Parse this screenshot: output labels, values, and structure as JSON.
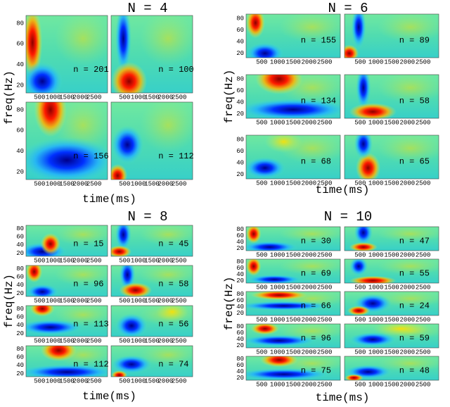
{
  "figure": {
    "y_label": "freq(Hz)",
    "x_label": "time(ms)",
    "x_ticks": [
      "500",
      "1000",
      "1500",
      "2000",
      "2500"
    ],
    "y_ticks": [
      "80",
      "60",
      "40",
      "20"
    ],
    "panels": [
      {
        "title": "N = 4",
        "counts": [
          "n = 201",
          "n = 100",
          "n = 156",
          "n = 112"
        ]
      },
      {
        "title": "N = 6",
        "counts": [
          "n = 155",
          "n = 89",
          "n = 134",
          "n = 58",
          "n = 68",
          "n = 65"
        ]
      },
      {
        "title": "N = 8",
        "counts": [
          "n = 15",
          "n = 45",
          "n = 96",
          "n = 58",
          "n = 113",
          "n = 56",
          "n = 112",
          "n = 74"
        ]
      },
      {
        "title": "N = 10",
        "counts": [
          "n = 30",
          "n = 47",
          "n = 69",
          "n = 55",
          "n = 66",
          "n = 24",
          "n = 96",
          "n = 59",
          "n = 75",
          "n = 48"
        ]
      }
    ]
  }
}
